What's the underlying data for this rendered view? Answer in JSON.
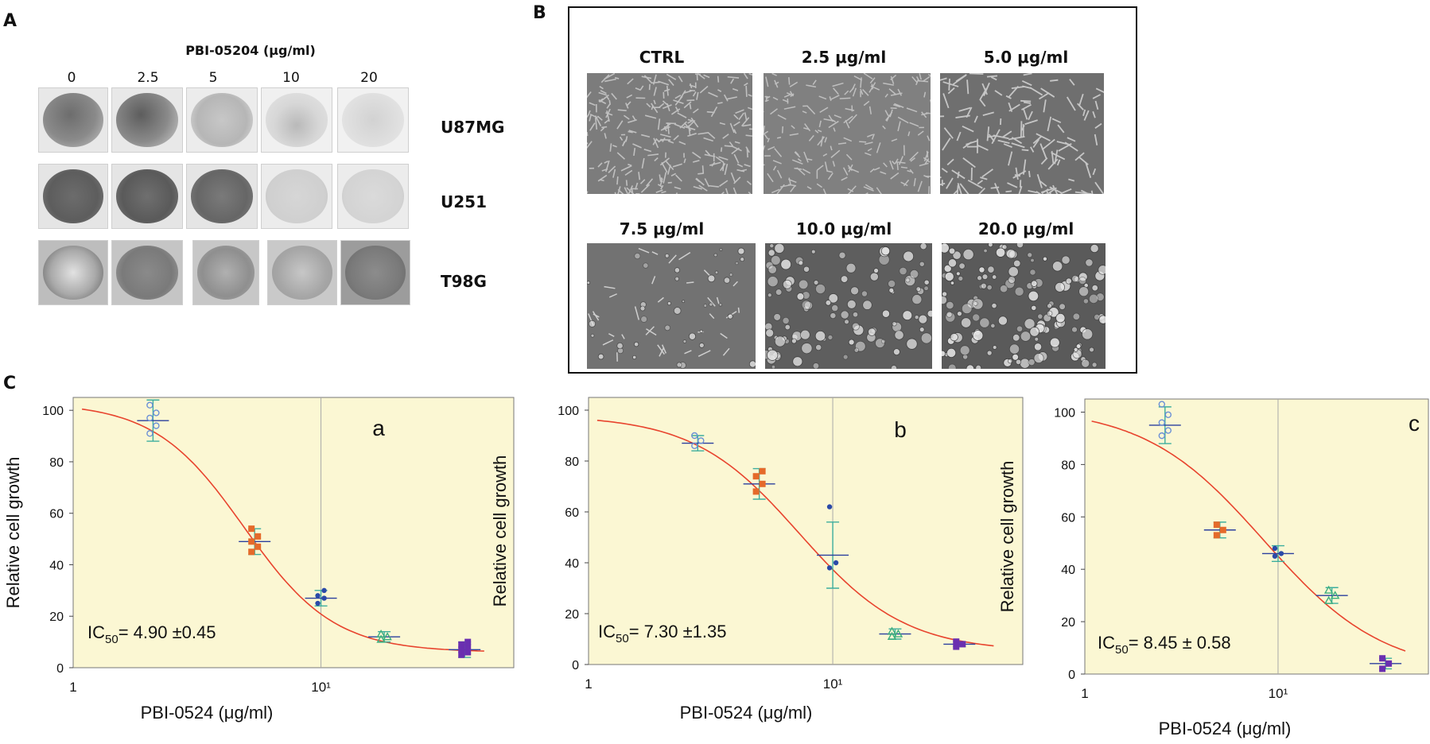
{
  "panels": {
    "A": "A",
    "B": "B",
    "C": "C"
  },
  "panelA": {
    "compound_label": "PBI-05204 (μg/ml)",
    "concentrations": [
      "0",
      "2.5",
      "5",
      "10",
      "20"
    ],
    "cell_lines": [
      "U87MG",
      "U251",
      "T98G"
    ]
  },
  "panelB": {
    "conditions": [
      "CTRL",
      "2.5 μg/ml",
      "5.0 μg/ml",
      "7.5 μg/ml",
      "10.0 μg/ml",
      "20.0 μg/ml"
    ]
  },
  "chart_data": [
    {
      "type": "scatter",
      "panel": "a",
      "xlabel": "PBI-0524 (μg/ml)",
      "ylabel": "Relative cell growth",
      "xscale": "log",
      "xlim": [
        1,
        60
      ],
      "ylim": [
        0,
        105
      ],
      "y_ticks": [
        0,
        20,
        40,
        60,
        80,
        100
      ],
      "x_tick_labels": [
        "1",
        "10¹"
      ],
      "annotation": {
        "prefix": "IC",
        "sub": "50",
        "text": "= 4.90 ±0.45"
      },
      "ic50": 4.9,
      "fit": {
        "top": 103,
        "bottom": 6,
        "ic50": 4.9,
        "hill": 2.4
      },
      "background": "#fbf7d3",
      "curve_color": "#e8442e",
      "points": [
        {
          "x": 2.1,
          "mean": 96,
          "err": 8,
          "vals": [
            91,
            94,
            97,
            99,
            102
          ],
          "marker": "circle",
          "color": "#6b8fd6"
        },
        {
          "x": 5.4,
          "mean": 49,
          "err": 5,
          "vals": [
            45,
            47,
            49,
            51,
            54
          ],
          "marker": "square",
          "color": "#e56a2a"
        },
        {
          "x": 10,
          "mean": 27,
          "err": 3,
          "vals": [
            25,
            27,
            28,
            30
          ],
          "marker": "dot",
          "color": "#2b4aa8"
        },
        {
          "x": 18,
          "mean": 12,
          "err": 2,
          "vals": [
            11,
            12,
            13
          ],
          "marker": "triangle",
          "color": "#3cae7e"
        },
        {
          "x": 38,
          "mean": 7,
          "err": 3,
          "vals": [
            5,
            6,
            7,
            8,
            9,
            10
          ],
          "marker": "square",
          "color": "#6a2fb0"
        }
      ]
    },
    {
      "type": "scatter",
      "panel": "b",
      "xlabel": "PBI-0524 (μg/ml)",
      "ylabel": "Relative cell growth",
      "xscale": "log",
      "xlim": [
        1,
        60
      ],
      "ylim": [
        0,
        105
      ],
      "y_ticks": [
        0,
        20,
        40,
        60,
        80,
        100
      ],
      "x_tick_labels": [
        "1",
        "10¹"
      ],
      "annotation": {
        "prefix": "IC",
        "sub": "50",
        "text": "= 7.30 ±1.35"
      },
      "ic50": 7.3,
      "fit": {
        "top": 98,
        "bottom": 5,
        "ic50": 7.3,
        "hill": 2.0
      },
      "background": "#fbf7d3",
      "curve_color": "#e8442e",
      "points": [
        {
          "x": 2.8,
          "mean": 87,
          "err": 3,
          "vals": [
            86,
            88,
            90
          ],
          "marker": "circle",
          "color": "#6b8fd6"
        },
        {
          "x": 5.0,
          "mean": 71,
          "err": 6,
          "vals": [
            68,
            71,
            74,
            76
          ],
          "marker": "square",
          "color": "#e56a2a"
        },
        {
          "x": 10,
          "mean": 43,
          "err": 13,
          "vals": [
            38,
            40,
            62
          ],
          "marker": "dot",
          "color": "#2b4aa8"
        },
        {
          "x": 18,
          "mean": 12,
          "err": 2,
          "vals": [
            11,
            12,
            13
          ],
          "marker": "triangle",
          "color": "#3cae7e"
        },
        {
          "x": 33,
          "mean": 8,
          "err": 1,
          "vals": [
            7,
            8,
            9
          ],
          "marker": "square",
          "color": "#6a2fb0"
        }
      ]
    },
    {
      "type": "scatter",
      "panel": "c",
      "xlabel": "PBI-0524 (μg/ml)",
      "ylabel": "Relative cell growth",
      "xscale": "log",
      "xlim": [
        1,
        60
      ],
      "ylim": [
        0,
        105
      ],
      "y_ticks": [
        0,
        20,
        40,
        60,
        80,
        100
      ],
      "x_tick_labels": [
        "1",
        "10¹"
      ],
      "annotation": {
        "prefix": "IC",
        "sub": "50",
        "text": "= 8.45 ± 0.58"
      },
      "ic50": 8.45,
      "fit": {
        "top": 102,
        "bottom": 0,
        "ic50": 8.45,
        "hill": 1.4
      },
      "background": "#fbf7d3",
      "curve_color": "#e8442e",
      "points": [
        {
          "x": 2.6,
          "mean": 95,
          "err": 7,
          "vals": [
            91,
            93,
            96,
            99,
            103
          ],
          "marker": "circle",
          "color": "#6b8fd6"
        },
        {
          "x": 5.0,
          "mean": 55,
          "err": 3,
          "vals": [
            53,
            55,
            57
          ],
          "marker": "square",
          "color": "#e56a2a"
        },
        {
          "x": 10,
          "mean": 46,
          "err": 3,
          "vals": [
            45,
            46,
            48
          ],
          "marker": "dot",
          "color": "#2b4aa8"
        },
        {
          "x": 19,
          "mean": 30,
          "err": 3,
          "vals": [
            28,
            30,
            32
          ],
          "marker": "triangle",
          "color": "#3cae7e"
        },
        {
          "x": 36,
          "mean": 4,
          "err": 2,
          "vals": [
            2,
            4,
            6
          ],
          "marker": "square",
          "color": "#6a2fb0"
        }
      ]
    }
  ]
}
